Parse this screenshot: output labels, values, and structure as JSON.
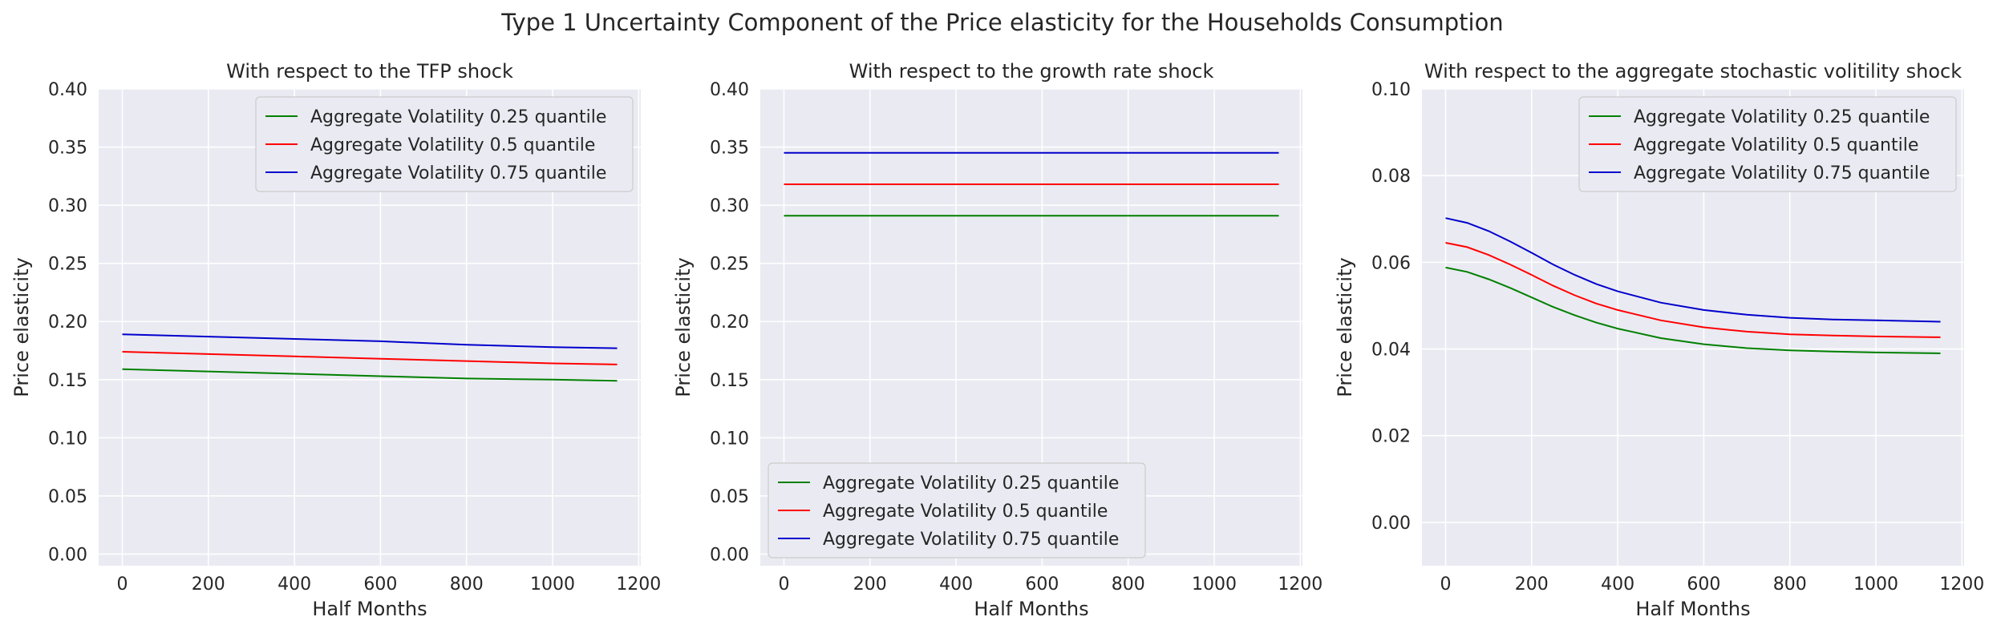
{
  "figure": {
    "title": "Type 1 Uncertainty Component of the Price elasticity for the Households Consumption"
  },
  "chart_data": [
    {
      "type": "line",
      "title": "With respect to the TFP shock",
      "xlabel": "Half Months",
      "ylabel": "Price elasticity",
      "xlim": [
        -55,
        1205
      ],
      "ylim": [
        -0.01,
        0.4
      ],
      "xticks": [
        0,
        200,
        400,
        600,
        800,
        1000,
        1200
      ],
      "xtick_labels": [
        "0",
        "200",
        "400",
        "600",
        "800",
        "1000",
        "1200"
      ],
      "yticks": [
        0.0,
        0.05,
        0.1,
        0.15,
        0.2,
        0.25,
        0.3,
        0.35,
        0.4
      ],
      "ytick_labels": [
        "0.00",
        "0.05",
        "0.10",
        "0.15",
        "0.20",
        "0.25",
        "0.30",
        "0.35",
        "0.40"
      ],
      "grid": true,
      "legend_position": "top-right",
      "x": [
        0,
        200,
        400,
        600,
        800,
        1000,
        1150
      ],
      "series": [
        {
          "name": "Aggregate Volatility 0.25 quantile",
          "color": "#008000",
          "values": [
            0.159,
            0.157,
            0.155,
            0.153,
            0.151,
            0.15,
            0.149
          ]
        },
        {
          "name": "Aggregate Volatility 0.5 quantile",
          "color": "#ff0000",
          "values": [
            0.174,
            0.172,
            0.17,
            0.168,
            0.166,
            0.164,
            0.163
          ]
        },
        {
          "name": "Aggregate Volatility 0.75 quantile",
          "color": "#0000cc",
          "values": [
            0.189,
            0.187,
            0.185,
            0.183,
            0.18,
            0.178,
            0.177
          ]
        }
      ]
    },
    {
      "type": "line",
      "title": "With respect to the growth rate shock",
      "xlabel": "Half Months",
      "ylabel": "Price elasticity",
      "xlim": [
        -55,
        1205
      ],
      "ylim": [
        -0.01,
        0.4
      ],
      "xticks": [
        0,
        200,
        400,
        600,
        800,
        1000,
        1200
      ],
      "xtick_labels": [
        "0",
        "200",
        "400",
        "600",
        "800",
        "1000",
        "1200"
      ],
      "yticks": [
        0.0,
        0.05,
        0.1,
        0.15,
        0.2,
        0.25,
        0.3,
        0.35,
        0.4
      ],
      "ytick_labels": [
        "0.00",
        "0.05",
        "0.10",
        "0.15",
        "0.20",
        "0.25",
        "0.30",
        "0.35",
        "0.40"
      ],
      "grid": true,
      "legend_position": "bottom-left",
      "x": [
        0,
        200,
        400,
        600,
        800,
        1000,
        1150
      ],
      "series": [
        {
          "name": "Aggregate Volatility 0.25 quantile",
          "color": "#008000",
          "values": [
            0.291,
            0.291,
            0.291,
            0.291,
            0.291,
            0.291,
            0.291
          ]
        },
        {
          "name": "Aggregate Volatility 0.5 quantile",
          "color": "#ff0000",
          "values": [
            0.318,
            0.318,
            0.318,
            0.318,
            0.318,
            0.318,
            0.318
          ]
        },
        {
          "name": "Aggregate Volatility 0.75 quantile",
          "color": "#0000cc",
          "values": [
            0.345,
            0.345,
            0.345,
            0.345,
            0.345,
            0.345,
            0.345
          ]
        }
      ]
    },
    {
      "type": "line",
      "title": "With respect to the aggregate stochastic volitility shock",
      "xlabel": "Half Months",
      "ylabel": "Price elasticity",
      "xlim": [
        -55,
        1205
      ],
      "ylim": [
        -0.01,
        0.1
      ],
      "xticks": [
        0,
        200,
        400,
        600,
        800,
        1000,
        1200
      ],
      "xtick_labels": [
        "0",
        "200",
        "400",
        "600",
        "800",
        "1000",
        "1200"
      ],
      "yticks": [
        0.0,
        0.02,
        0.04,
        0.06,
        0.08,
        0.1
      ],
      "ytick_labels": [
        "0.00",
        "0.02",
        "0.04",
        "0.06",
        "0.08",
        "0.10"
      ],
      "grid": true,
      "legend_position": "top-right",
      "x": [
        0,
        50,
        100,
        150,
        200,
        250,
        300,
        350,
        400,
        500,
        600,
        700,
        800,
        900,
        1000,
        1150
      ],
      "series": [
        {
          "name": "Aggregate Volatility 0.25 quantile",
          "color": "#008000",
          "values": [
            0.0588,
            0.0578,
            0.0561,
            0.0541,
            0.0519,
            0.0497,
            0.0478,
            0.0461,
            0.0447,
            0.0425,
            0.0411,
            0.0402,
            0.0397,
            0.0394,
            0.0392,
            0.039
          ]
        },
        {
          "name": "Aggregate Volatility 0.5 quantile",
          "color": "#ff0000",
          "values": [
            0.0645,
            0.0635,
            0.0617,
            0.0595,
            0.0571,
            0.0546,
            0.0524,
            0.0505,
            0.049,
            0.0466,
            0.045,
            0.044,
            0.0434,
            0.0431,
            0.0429,
            0.0427
          ]
        },
        {
          "name": "Aggregate Volatility 0.75 quantile",
          "color": "#0000cc",
          "values": [
            0.0702,
            0.0691,
            0.0672,
            0.0648,
            0.0622,
            0.0595,
            0.0571,
            0.055,
            0.0533,
            0.0507,
            0.049,
            0.0479,
            0.0472,
            0.0468,
            0.0466,
            0.0463
          ]
        }
      ]
    }
  ]
}
